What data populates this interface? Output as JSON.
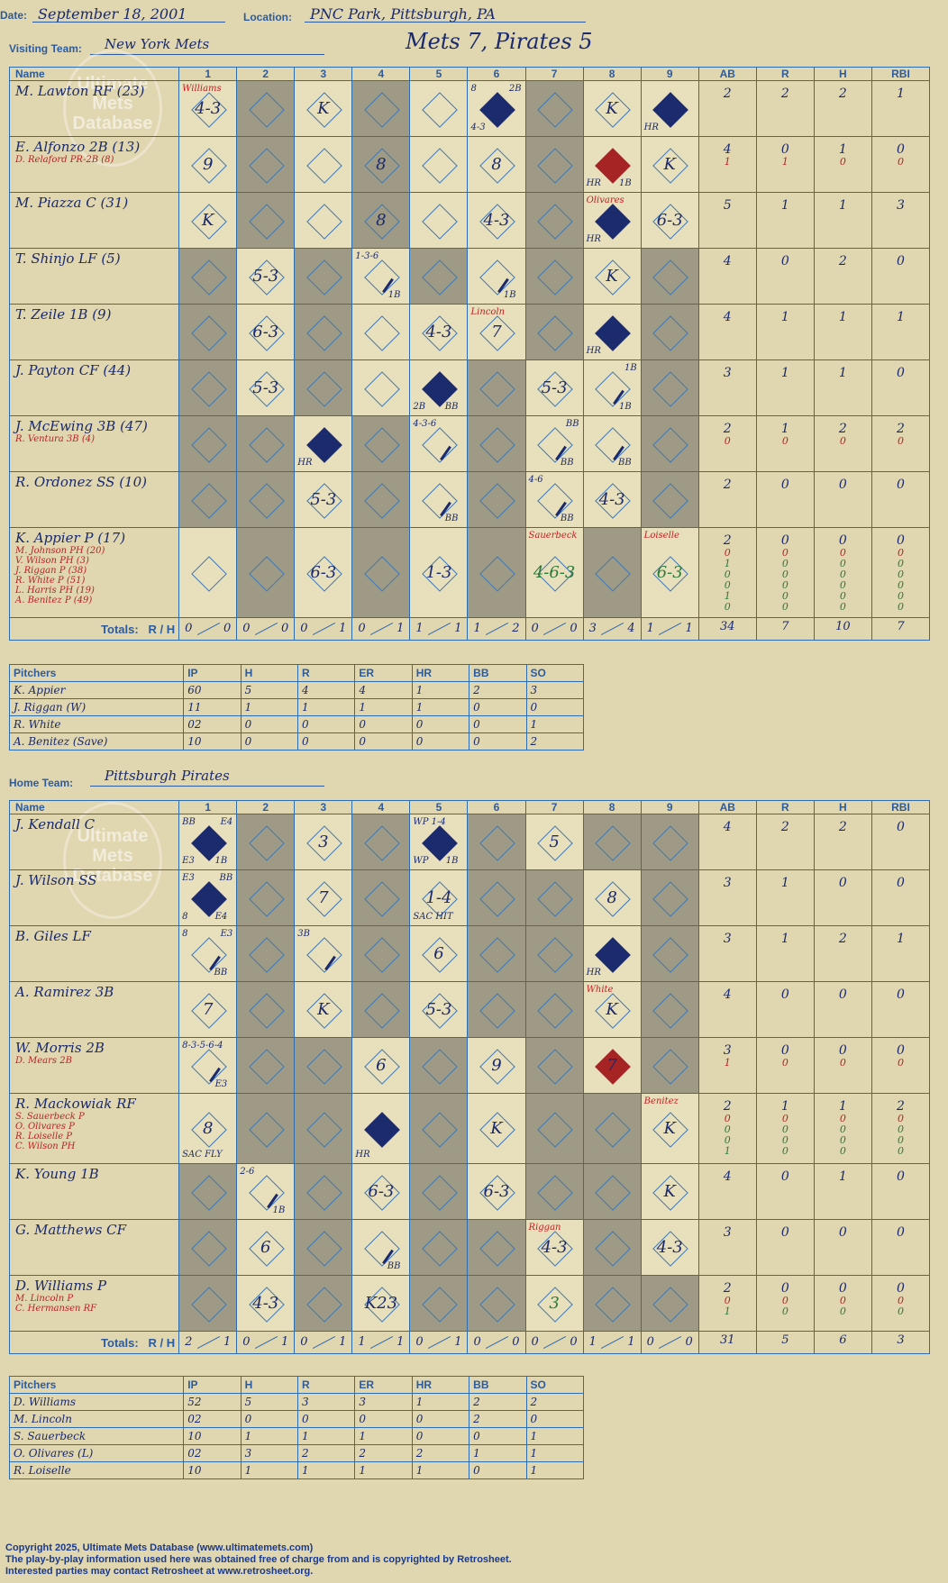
{
  "header": {
    "date_label": "Date:",
    "date": "September 18, 2001",
    "location_label": "Location:",
    "location": "PNC Park, Pittsburgh, PA",
    "visiting_label": "Visiting Team:",
    "visiting_team": "New York Mets",
    "result": "Mets 7, Pirates 5",
    "home_label": "Home Team:",
    "home_team": "Pittsburgh Pirates"
  },
  "columns": {
    "name": "Name",
    "innings": [
      "1",
      "2",
      "3",
      "4",
      "5",
      "6",
      "7",
      "8",
      "9"
    ],
    "ab": "AB",
    "r": "R",
    "h": "H",
    "rbi": "RBI"
  },
  "totals_label": "Totals:",
  "rh_label": {
    "r": "R",
    "h": "H"
  },
  "visitors": {
    "players": [
      {
        "name": "M. Lawton RF (23)",
        "subs": [],
        "stats": [
          "2",
          "2",
          "2",
          "1"
        ],
        "sub_stats": []
      },
      {
        "name": "E. Alfonzo 2B (13)",
        "subs": [
          "D. Relaford PR-2B (8)"
        ],
        "stats": [
          "4",
          "0",
          "1",
          "0"
        ],
        "sub_stats": [
          [
            "1",
            "1",
            "0",
            "0"
          ]
        ]
      },
      {
        "name": "M. Piazza C (31)",
        "subs": [],
        "stats": [
          "5",
          "1",
          "1",
          "3"
        ],
        "sub_stats": []
      },
      {
        "name": "T. Shinjo LF (5)",
        "subs": [],
        "stats": [
          "4",
          "0",
          "2",
          "0"
        ],
        "sub_stats": []
      },
      {
        "name": "T. Zeile 1B (9)",
        "subs": [],
        "stats": [
          "4",
          "1",
          "1",
          "1"
        ],
        "sub_stats": []
      },
      {
        "name": "J. Payton CF (44)",
        "subs": [],
        "stats": [
          "3",
          "1",
          "1",
          "0"
        ],
        "sub_stats": []
      },
      {
        "name": "J. McEwing 3B (47)",
        "subs": [
          "R. Ventura 3B (4)"
        ],
        "stats": [
          "2",
          "1",
          "2",
          "2"
        ],
        "sub_stats": [
          [
            "0",
            "0",
            "0",
            "0"
          ]
        ]
      },
      {
        "name": "R. Ordonez SS (10)",
        "subs": [],
        "stats": [
          "2",
          "0",
          "0",
          "0"
        ],
        "sub_stats": []
      },
      {
        "name": "K. Appier P (17)",
        "subs": [
          "M. Johnson PH (20)",
          "V. Wilson PH (3)",
          "J. Riggan P (38)",
          "R. White P (51)",
          "L. Harris PH (19)",
          "A. Benitez P (49)"
        ],
        "stats": [
          "2",
          "0",
          "0",
          "0"
        ],
        "sub_stats": [
          [
            "0",
            "0",
            "0",
            "0"
          ],
          [
            "1",
            "0",
            "0",
            "0"
          ],
          [
            "0",
            "0",
            "0",
            "0"
          ],
          [
            "0",
            "0",
            "0",
            "0"
          ],
          [
            "1",
            "0",
            "0",
            "0"
          ],
          [
            "0",
            "0",
            "0",
            "0"
          ]
        ]
      }
    ],
    "cells": [
      [
        {
          "t": "4-3",
          "tl": "Williams"
        },
        {},
        {
          "t": "K"
        },
        {},
        {},
        {
          "on": true,
          "tl": "8",
          "tr": "2B",
          "bl": "4-3"
        },
        {},
        {
          "t": "K"
        },
        {
          "on": true,
          "bl": "HR"
        }
      ],
      [
        {
          "t": "9"
        },
        {},
        {},
        {
          "t": "8"
        },
        {},
        {
          "t": "8"
        },
        {},
        {
          "red": true,
          "bl": "HR",
          "br": "1B"
        },
        {
          "t": "K"
        }
      ],
      [
        {
          "t": "K"
        },
        {},
        {},
        {
          "t": "8"
        },
        {},
        {
          "t": "4-3"
        },
        {},
        {
          "on": true,
          "bl": "HR",
          "tl": "Olivares"
        },
        {
          "t": "6-3"
        }
      ],
      [
        {},
        {
          "t": "5-3"
        },
        {},
        {
          "slash": true,
          "tl": "1-3-6",
          "br": "1B"
        },
        {},
        {
          "slash": true,
          "br": "1B"
        },
        {},
        {
          "t": "K"
        },
        {}
      ],
      [
        {},
        {
          "t": "6-3"
        },
        {},
        {},
        {
          "t": "4-3"
        },
        {
          "t": "7",
          "tl": "Lincoln"
        },
        {},
        {
          "on": true,
          "bl": "HR"
        },
        {}
      ],
      [
        {},
        {
          "t": "5-3"
        },
        {},
        {},
        {
          "on": true,
          "bl": "2B",
          "br": "BB"
        },
        {},
        {
          "t": "5-3"
        },
        {
          "slash": true,
          "tr": "1B",
          "br": "1B"
        },
        {}
      ],
      [
        {},
        {},
        {
          "on": true,
          "bl": "HR"
        },
        {},
        {
          "slash": true,
          "tl": "4-3-6"
        },
        {},
        {
          "slash": true,
          "tr": "BB",
          "br": "BB"
        },
        {
          "slash": true,
          "br": "BB"
        },
        {}
      ],
      [
        {},
        {},
        {
          "t": "5-3"
        },
        {},
        {
          "slash": true,
          "br": "BB"
        },
        {},
        {
          "slash": true,
          "tl": "4-6",
          "br": "BB"
        },
        {
          "t": "4-3"
        },
        {}
      ],
      [
        {},
        {},
        {
          "t": "6-3"
        },
        {},
        {
          "t": "1-3"
        },
        {},
        {
          "t": "4-6-3",
          "grn": true,
          "tl": "Sauerbeck"
        },
        {},
        {
          "t": "6-3",
          "grn": true,
          "tl": "Loiselle"
        }
      ]
    ],
    "totals_rh": [
      [
        "0",
        "0"
      ],
      [
        "0",
        "0"
      ],
      [
        "0",
        "1"
      ],
      [
        "0",
        "1"
      ],
      [
        "1",
        "1"
      ],
      [
        "1",
        "2"
      ],
      [
        "0",
        "0"
      ],
      [
        "3",
        "4"
      ],
      [
        "1",
        "1"
      ]
    ],
    "totals_stats": [
      "34",
      "7",
      "10",
      "7"
    ],
    "shade": [
      [
        1,
        3,
        6
      ],
      [
        1,
        3,
        6
      ],
      [
        1,
        3,
        6
      ],
      [
        0,
        2,
        4,
        6,
        8
      ],
      [
        0,
        2,
        6,
        8
      ],
      [
        0,
        2,
        5,
        8
      ],
      [
        0,
        1,
        3,
        5,
        8
      ],
      [
        0,
        1,
        3,
        5,
        8
      ],
      [
        1,
        3,
        5,
        7
      ]
    ]
  },
  "visitor_pitchers": {
    "headers": [
      "Pitchers",
      "IP",
      "H",
      "R",
      "ER",
      "HR",
      "BB",
      "SO"
    ],
    "rows": [
      [
        "K. Appier",
        "60",
        "5",
        "4",
        "4",
        "1",
        "2",
        "3"
      ],
      [
        "J. Riggan (W)",
        "11",
        "1",
        "1",
        "1",
        "1",
        "0",
        "0"
      ],
      [
        "R. White",
        "02",
        "0",
        "0",
        "0",
        "0",
        "0",
        "1"
      ],
      [
        "A. Benitez (Save)",
        "10",
        "0",
        "0",
        "0",
        "0",
        "0",
        "2"
      ]
    ]
  },
  "home": {
    "players": [
      {
        "name": "J. Kendall C",
        "subs": [],
        "stats": [
          "4",
          "2",
          "2",
          "0"
        ],
        "sub_stats": []
      },
      {
        "name": "J. Wilson SS",
        "subs": [],
        "stats": [
          "3",
          "1",
          "0",
          "0"
        ],
        "sub_stats": []
      },
      {
        "name": "B. Giles LF",
        "subs": [],
        "stats": [
          "3",
          "1",
          "2",
          "1"
        ],
        "sub_stats": []
      },
      {
        "name": "A. Ramirez 3B",
        "subs": [],
        "stats": [
          "4",
          "0",
          "0",
          "0"
        ],
        "sub_stats": []
      },
      {
        "name": "W. Morris 2B",
        "subs": [
          "D. Mears 2B"
        ],
        "stats": [
          "3",
          "0",
          "0",
          "0"
        ],
        "sub_stats": [
          [
            "1",
            "0",
            "0",
            "0"
          ]
        ]
      },
      {
        "name": "R. Mackowiak RF",
        "subs": [
          "S. Sauerbeck P",
          "O. Olivares P",
          "R. Loiselle P",
          "C. Wilson PH"
        ],
        "stats": [
          "2",
          "1",
          "1",
          "2"
        ],
        "sub_stats": [
          [
            "0",
            "0",
            "0",
            "0"
          ],
          [
            "0",
            "0",
            "0",
            "0"
          ],
          [
            "0",
            "0",
            "0",
            "0"
          ],
          [
            "1",
            "0",
            "0",
            "0"
          ]
        ]
      },
      {
        "name": "K. Young 1B",
        "subs": [],
        "stats": [
          "4",
          "0",
          "1",
          "0"
        ],
        "sub_stats": []
      },
      {
        "name": "G. Matthews CF",
        "subs": [],
        "stats": [
          "3",
          "0",
          "0",
          "0"
        ],
        "sub_stats": []
      },
      {
        "name": "D. Williams P",
        "subs": [
          "M. Lincoln P",
          "C. Hermansen RF"
        ],
        "stats": [
          "2",
          "0",
          "0",
          "0"
        ],
        "sub_stats": [
          [
            "0",
            "0",
            "0",
            "0"
          ],
          [
            "1",
            "0",
            "0",
            "0"
          ]
        ]
      }
    ],
    "cells": [
      [
        {
          "on": true,
          "tl": "BB",
          "tr": "E4",
          "bl": "E3",
          "br": "1B"
        },
        {},
        {
          "t": "3"
        },
        {},
        {
          "on": true,
          "tl": "WP 1-4",
          "bl": "WP",
          "br": "1B"
        },
        {},
        {
          "t": "5"
        },
        {},
        {}
      ],
      [
        {
          "on": true,
          "tl": "E3",
          "tr": "BB",
          "bl": "8",
          "br": "E4"
        },
        {},
        {
          "t": "7"
        },
        {},
        {
          "t": "1-4",
          "bl": "SAC HIT"
        },
        {},
        {},
        {
          "t": "8"
        },
        {}
      ],
      [
        {
          "slash": true,
          "tl": "8",
          "tr": "E3",
          "br": "BB"
        },
        {},
        {
          "slash": true,
          "tl": "3B"
        },
        {},
        {
          "t": "6"
        },
        {},
        {},
        {
          "on": true,
          "bl": "HR"
        },
        {}
      ],
      [
        {
          "t": "7"
        },
        {},
        {
          "t": "K"
        },
        {},
        {
          "t": "5-3"
        },
        {},
        {},
        {
          "t": "K",
          "tl": "White"
        },
        {}
      ],
      [
        {
          "slash": true,
          "tl": "8-3-5-6-4",
          "br": "E3"
        },
        {},
        {},
        {
          "t": "6"
        },
        {},
        {
          "t": "9"
        },
        {},
        {
          "t": "7",
          "red": true
        },
        {}
      ],
      [
        {
          "t": "8",
          "bl": "SAC FLY"
        },
        {},
        {},
        {
          "on": true,
          "bl": "HR"
        },
        {},
        {
          "t": "K"
        },
        {},
        {},
        {
          "t": "K",
          "tl": "Benitez"
        }
      ],
      [
        {},
        {
          "slash": true,
          "tl": "2-6",
          "br": "1B"
        },
        {},
        {
          "t": "6-3"
        },
        {},
        {
          "t": "6-3"
        },
        {},
        {},
        {
          "t": "K"
        }
      ],
      [
        {},
        {
          "t": "6"
        },
        {},
        {
          "slash": true,
          "br": "BB"
        },
        {},
        {},
        {
          "t": "4-3",
          "tl": "Riggan"
        },
        {},
        {
          "t": "4-3"
        }
      ],
      [
        {},
        {
          "t": "4-3"
        },
        {},
        {
          "t": "K23"
        },
        {},
        {},
        {
          "t": "3",
          "grn": true
        },
        {},
        {}
      ]
    ],
    "totals_rh": [
      [
        "2",
        "1"
      ],
      [
        "0",
        "1"
      ],
      [
        "0",
        "1"
      ],
      [
        "1",
        "1"
      ],
      [
        "0",
        "1"
      ],
      [
        "0",
        "0"
      ],
      [
        "0",
        "0"
      ],
      [
        "1",
        "1"
      ],
      [
        "0",
        "0"
      ]
    ],
    "totals_stats": [
      "31",
      "5",
      "6",
      "3"
    ],
    "shade": [
      [
        1,
        3,
        5,
        7,
        8
      ],
      [
        1,
        3,
        5,
        6,
        8
      ],
      [
        1,
        3,
        5,
        6,
        8
      ],
      [
        1,
        3,
        5,
        6,
        8
      ],
      [
        1,
        2,
        4,
        6,
        8
      ],
      [
        1,
        2,
        4,
        6,
        7
      ],
      [
        0,
        2,
        4,
        6,
        7
      ],
      [
        0,
        2,
        4,
        5,
        7
      ],
      [
        0,
        2,
        4,
        5,
        7,
        8
      ]
    ]
  },
  "home_pitchers": {
    "headers": [
      "Pitchers",
      "IP",
      "H",
      "R",
      "ER",
      "HR",
      "BB",
      "SO"
    ],
    "rows": [
      [
        "D. Williams",
        "52",
        "5",
        "3",
        "3",
        "1",
        "2",
        "2"
      ],
      [
        "M. Lincoln",
        "02",
        "0",
        "0",
        "0",
        "0",
        "2",
        "0"
      ],
      [
        "S. Sauerbeck",
        "10",
        "1",
        "1",
        "1",
        "0",
        "0",
        "1"
      ],
      [
        "O. Olivares (L)",
        "02",
        "3",
        "2",
        "2",
        "2",
        "1",
        "1"
      ],
      [
        "R. Loiselle",
        "10",
        "1",
        "1",
        "1",
        "1",
        "0",
        "1"
      ]
    ]
  },
  "watermark": "Ultimate Mets Database",
  "watermark_url": "ultimatemets.com",
  "footer": {
    "copyright": "Copyright 2025, Ultimate Mets Database (www.ultimatemets.com)",
    "line2": "The play-by-play information used here was obtained free of charge from and is copyrighted by Retrosheet.",
    "line3": "Interested parties may contact Retrosheet at www.retrosheet.org."
  },
  "colors": {
    "ink": "#1a2a6c",
    "grid": "#2c6cb0",
    "paper": "#e0d6b0",
    "shade": "#9e9a86",
    "red": "#c02020",
    "green": "#2a7a3a"
  }
}
